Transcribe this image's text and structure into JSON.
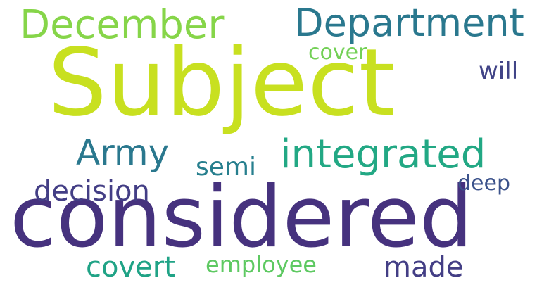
{
  "wordcloud": {
    "words": [
      {
        "text": "Subject",
        "color": "#c8e020"
      },
      {
        "text": "considered",
        "color": "#46327e"
      },
      {
        "text": "December",
        "color": "#86d549"
      },
      {
        "text": "Department",
        "color": "#2a788e"
      },
      {
        "text": "integrated",
        "color": "#22a884"
      },
      {
        "text": "Army",
        "color": "#2a788e"
      },
      {
        "text": "semi",
        "color": "#277f8e"
      },
      {
        "text": "decision",
        "color": "#433e85"
      },
      {
        "text": "cover",
        "color": "#73d056"
      },
      {
        "text": "will",
        "color": "#414487"
      },
      {
        "text": "deep",
        "color": "#3b528b"
      },
      {
        "text": "covert",
        "color": "#20a386"
      },
      {
        "text": "employee",
        "color": "#5ec962"
      },
      {
        "text": "made",
        "color": "#433e85"
      }
    ]
  }
}
